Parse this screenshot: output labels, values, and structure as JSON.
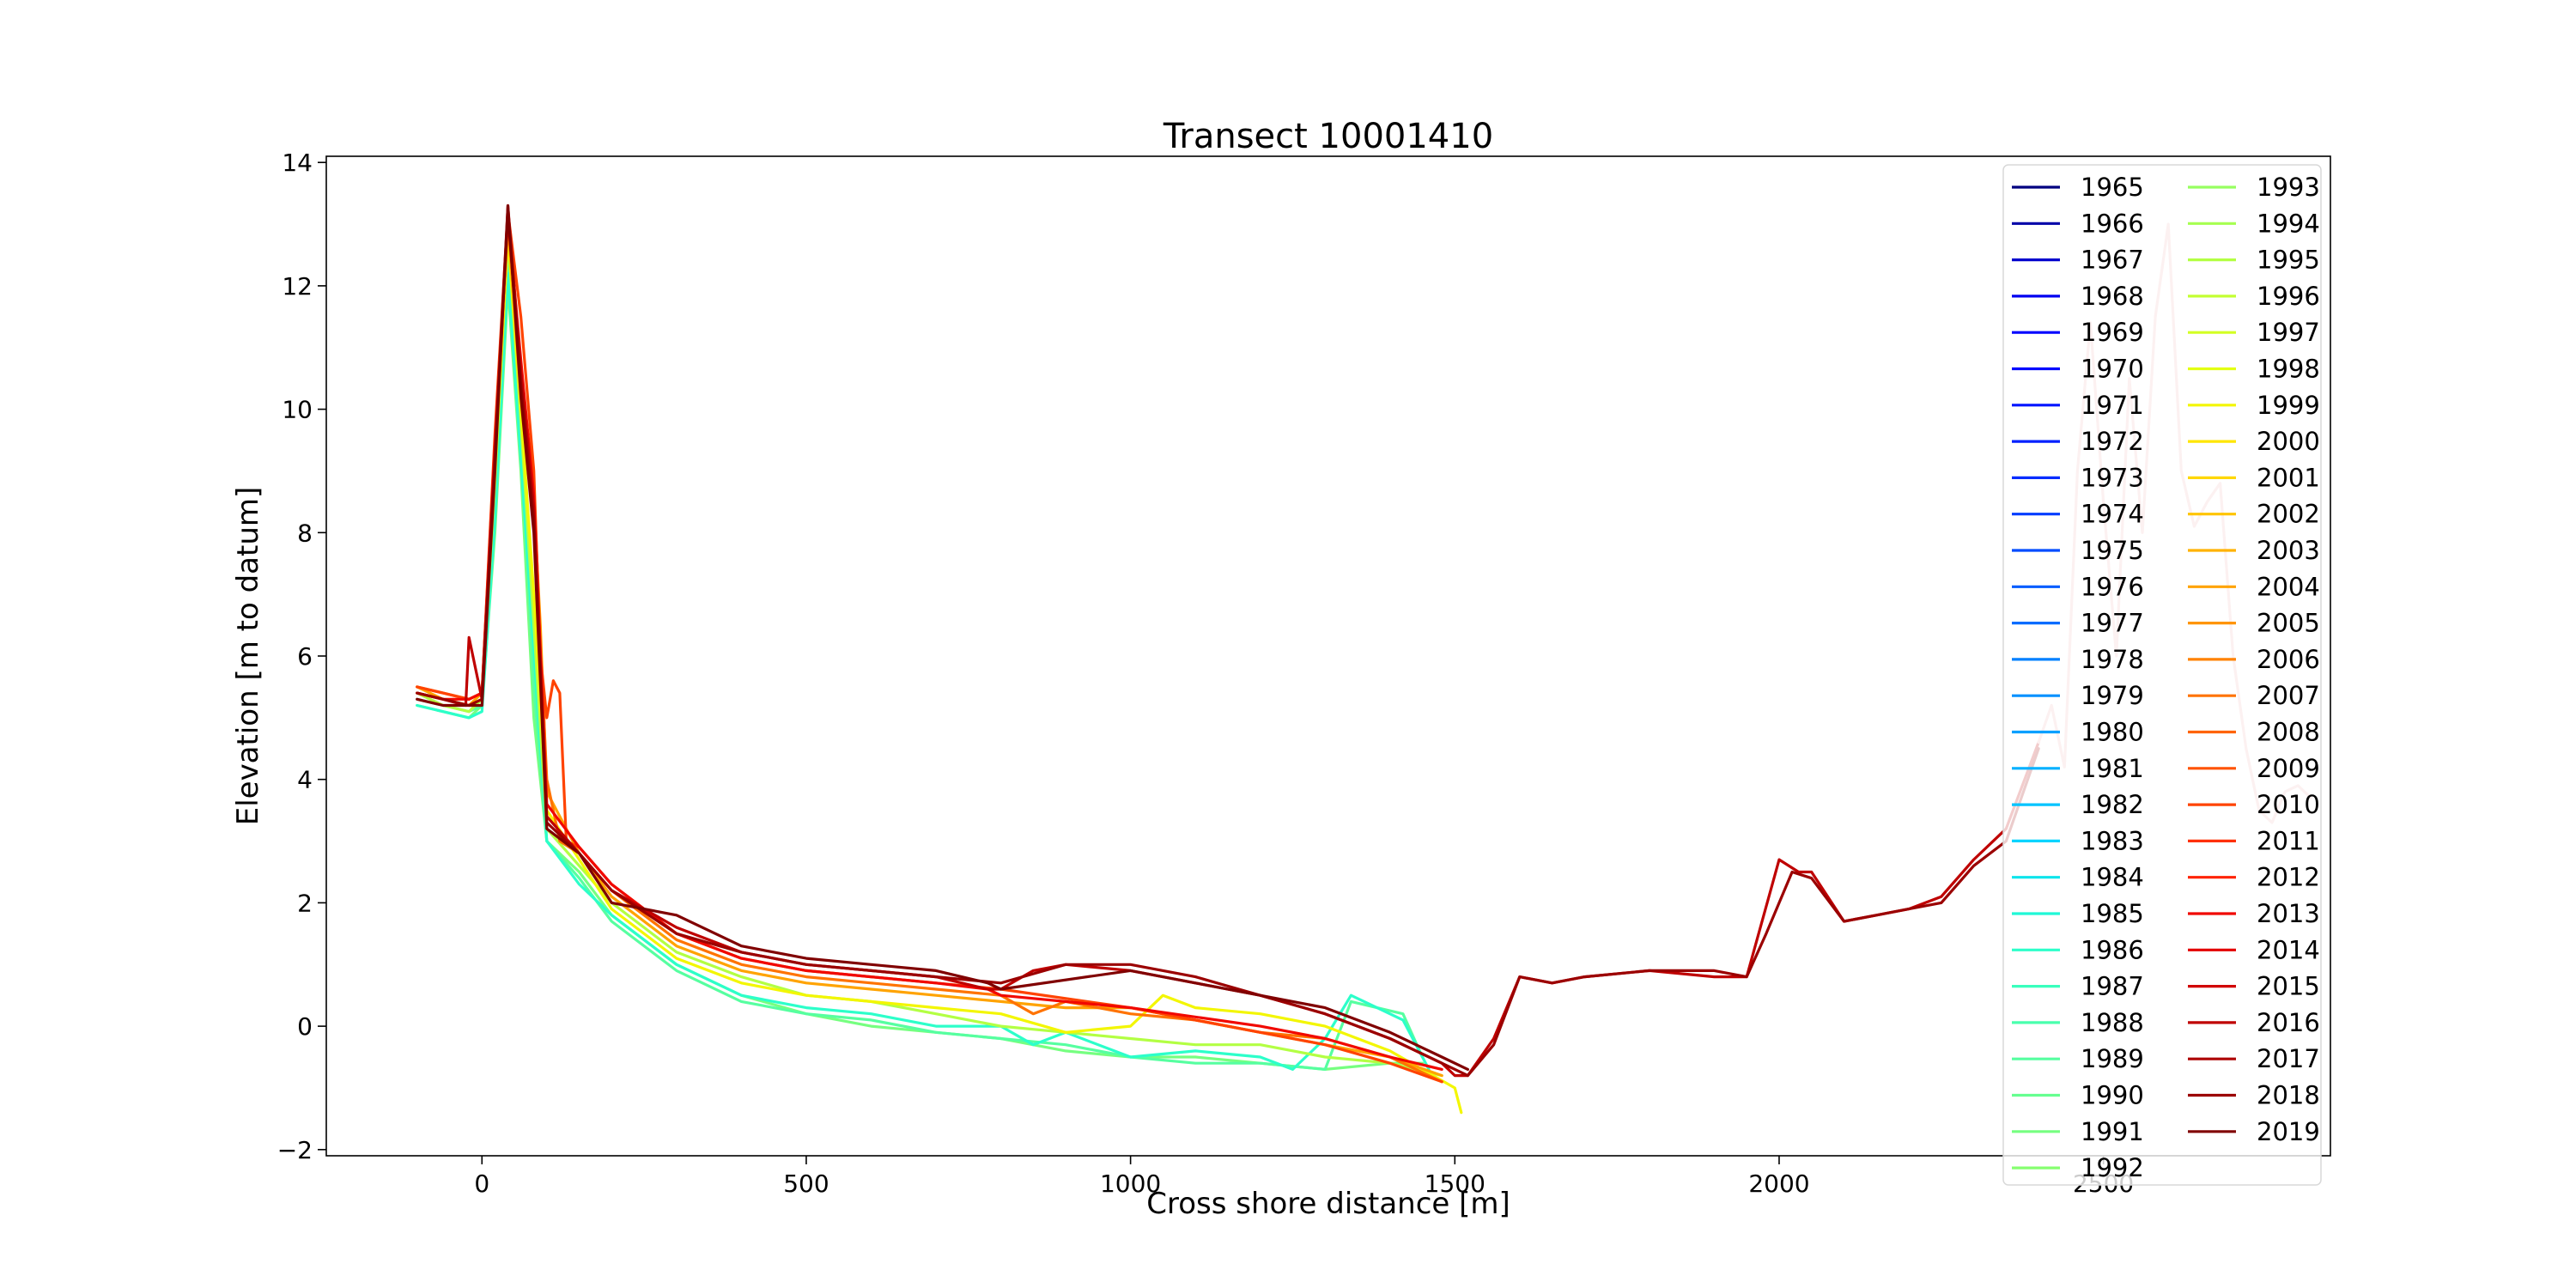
{
  "chart_data": {
    "type": "line",
    "title": "Transect 10001410",
    "xlabel": "Cross shore distance [m]",
    "ylabel": "Elevation [m to datum]",
    "xlim": [
      -240,
      2850
    ],
    "ylim": [
      -2.1,
      14.1
    ],
    "xticks": [
      0,
      500,
      1000,
      1500,
      2000,
      2500
    ],
    "xtick_labels": [
      "0",
      "500",
      "1000",
      "1500",
      "2000",
      "2500"
    ],
    "yticks": [
      -2,
      0,
      2,
      4,
      6,
      8,
      10,
      12,
      14
    ],
    "ytick_labels": [
      "−2",
      "0",
      "2",
      "4",
      "6",
      "8",
      "10",
      "12",
      "14"
    ],
    "grid": false,
    "legend": {
      "placement": "top-right",
      "columns": 2
    },
    "years": [
      "1965",
      "1966",
      "1967",
      "1968",
      "1969",
      "1970",
      "1971",
      "1972",
      "1973",
      "1974",
      "1975",
      "1976",
      "1977",
      "1978",
      "1979",
      "1980",
      "1981",
      "1982",
      "1983",
      "1984",
      "1985",
      "1986",
      "1987",
      "1988",
      "1989",
      "1990",
      "1991",
      "1992",
      "1993",
      "1994",
      "1995",
      "1996",
      "1997",
      "1998",
      "1999",
      "2000",
      "2001",
      "2002",
      "2003",
      "2004",
      "2005",
      "2006",
      "2007",
      "2008",
      "2009",
      "2010",
      "2011",
      "2012",
      "2013",
      "2014",
      "2015",
      "2016",
      "2017",
      "2018",
      "2019"
    ],
    "colors": [
      "#000080",
      "#0000a8",
      "#0000cd",
      "#0000f1",
      "#0000ff",
      "#0008ff",
      "#0014ff",
      "#0020ff",
      "#002cff",
      "#003cff",
      "#004cff",
      "#005cff",
      "#006cff",
      "#0080ff",
      "#0090ff",
      "#00a0ff",
      "#00b0ff",
      "#00c4ff",
      "#00d4ff",
      "#0ce4eb",
      "#1ff8d7",
      "#2cffca",
      "#39ffbd",
      "#49ffad",
      "#56ffa0",
      "#66ff90",
      "#76ff80",
      "#86ff70",
      "#96ff60",
      "#a6ff50",
      "#b3ff43",
      "#c3ff33",
      "#d3ff23",
      "#e3ff13",
      "#f3f602",
      "#ffe600",
      "#ffd700",
      "#ffc400",
      "#ffb200",
      "#ffa300",
      "#ff9400",
      "#ff8200",
      "#ff7300",
      "#ff6400",
      "#ff5200",
      "#ff4300",
      "#ff3000",
      "#ff2200",
      "#f10800",
      "#e30000",
      "#d10000",
      "#bf0000",
      "#ad0000",
      "#9b0000",
      "#800000"
    ],
    "series": [
      {
        "name": "1991",
        "color": "#76ff80",
        "x": [
          -100,
          -60,
          -20,
          0,
          20,
          40,
          60,
          80,
          100,
          150,
          200,
          300,
          400,
          500,
          600,
          700,
          800,
          900,
          1000,
          1100,
          1200,
          1300,
          1400,
          1450
        ],
        "y": [
          5.2,
          5.1,
          5.0,
          5.2,
          8.0,
          12.0,
          9.0,
          5.0,
          3.0,
          2.5,
          1.8,
          1.0,
          0.5,
          0.2,
          0.0,
          -0.1,
          -0.2,
          -0.4,
          -0.5,
          -0.5,
          -0.6,
          -0.7,
          -0.6,
          -0.6
        ]
      },
      {
        "name": "1989",
        "color": "#56ffa0",
        "x": [
          -100,
          -60,
          -20,
          0,
          20,
          40,
          60,
          80,
          100,
          150,
          200,
          300,
          400,
          500,
          600,
          700,
          800,
          900,
          1000,
          1100,
          1200,
          1300,
          1340,
          1380,
          1420,
          1450
        ],
        "y": [
          5.3,
          5.2,
          5.1,
          5.2,
          8.5,
          12.5,
          9.5,
          5.5,
          3.0,
          2.4,
          1.7,
          0.9,
          0.4,
          0.2,
          0.1,
          -0.1,
          -0.2,
          -0.3,
          -0.5,
          -0.6,
          -0.6,
          -0.7,
          0.4,
          0.3,
          0.2,
          -0.5
        ]
      },
      {
        "name": "1986",
        "color": "#2cffca",
        "x": [
          -100,
          -60,
          -20,
          0,
          20,
          40,
          60,
          100,
          150,
          200,
          300,
          400,
          500,
          600,
          700,
          800,
          850,
          900,
          1000,
          1100,
          1200,
          1250,
          1300,
          1340,
          1380,
          1420,
          1460
        ],
        "y": [
          5.2,
          5.1,
          5.0,
          5.1,
          8.2,
          12.2,
          9.2,
          3.0,
          2.3,
          1.8,
          1.0,
          0.5,
          0.3,
          0.2,
          0.0,
          0.0,
          -0.3,
          -0.1,
          -0.5,
          -0.4,
          -0.5,
          -0.7,
          -0.2,
          0.5,
          0.3,
          0.1,
          -0.7
        ]
      },
      {
        "name": "1995",
        "color": "#b3ff43",
        "x": [
          -100,
          -60,
          -20,
          0,
          20,
          40,
          60,
          100,
          150,
          200,
          300,
          400,
          500,
          600,
          700,
          800,
          900,
          1000,
          1100,
          1200,
          1300,
          1400,
          1480
        ],
        "y": [
          5.4,
          5.2,
          5.1,
          5.3,
          8.8,
          12.8,
          9.8,
          3.2,
          2.6,
          2.0,
          1.2,
          0.8,
          0.5,
          0.4,
          0.2,
          0.0,
          -0.1,
          -0.2,
          -0.3,
          -0.3,
          -0.5,
          -0.6,
          -0.8
        ]
      },
      {
        "name": "1999",
        "color": "#f3f602",
        "x": [
          -100,
          -60,
          -20,
          0,
          20,
          40,
          60,
          80,
          100,
          150,
          200,
          300,
          400,
          500,
          600,
          700,
          800,
          900,
          1000,
          1050,
          1100,
          1200,
          1300,
          1400,
          1500,
          1510
        ],
        "y": [
          5.4,
          5.3,
          5.2,
          5.3,
          9.0,
          12.8,
          10.0,
          7.0,
          3.5,
          2.7,
          1.9,
          1.1,
          0.7,
          0.5,
          0.4,
          0.3,
          0.2,
          -0.1,
          0.0,
          0.5,
          0.3,
          0.2,
          0.0,
          -0.4,
          -1.0,
          -1.4
        ]
      },
      {
        "name": "2004",
        "color": "#ffa300",
        "x": [
          -100,
          -60,
          -20,
          0,
          20,
          40,
          60,
          80,
          90,
          100,
          150,
          200,
          300,
          400,
          500,
          600,
          700,
          800,
          900,
          1000,
          1100,
          1200,
          1300,
          1400,
          1480
        ],
        "y": [
          5.5,
          5.3,
          5.2,
          5.4,
          9.2,
          13.0,
          10.2,
          8.5,
          6.5,
          3.8,
          2.8,
          2.1,
          1.3,
          0.9,
          0.7,
          0.6,
          0.5,
          0.4,
          0.3,
          0.3,
          0.1,
          -0.1,
          -0.3,
          -0.5,
          -0.8
        ]
      },
      {
        "name": "2007",
        "color": "#ff7300",
        "x": [
          -100,
          -60,
          -20,
          0,
          20,
          40,
          60,
          80,
          90,
          100,
          120,
          150,
          200,
          300,
          400,
          500,
          600,
          700,
          800,
          850,
          900,
          1000,
          1100,
          1200,
          1300,
          1400,
          1480
        ],
        "y": [
          5.5,
          5.4,
          5.3,
          5.4,
          9.5,
          13.1,
          10.5,
          8.8,
          6.2,
          4.0,
          3.0,
          2.8,
          2.2,
          1.4,
          1.0,
          0.8,
          0.7,
          0.6,
          0.5,
          0.2,
          0.4,
          0.2,
          0.1,
          -0.1,
          -0.2,
          -0.5,
          -0.9
        ]
      },
      {
        "name": "2010",
        "color": "#ff4300",
        "x": [
          -100,
          -60,
          -20,
          0,
          20,
          40,
          60,
          80,
          90,
          100,
          110,
          120,
          130,
          150,
          200,
          300,
          400,
          500,
          600,
          700,
          800,
          1000,
          1200,
          1300,
          1400,
          1480
        ],
        "y": [
          5.5,
          5.4,
          5.3,
          5.4,
          9.6,
          13.2,
          11.5,
          9.0,
          6.0,
          5.0,
          5.6,
          5.4,
          3.0,
          2.9,
          2.3,
          1.5,
          1.1,
          0.9,
          0.8,
          0.7,
          0.6,
          0.3,
          -0.1,
          -0.3,
          -0.6,
          -0.9
        ]
      },
      {
        "name": "2013",
        "color": "#f10800",
        "x": [
          -100,
          -60,
          -20,
          0,
          20,
          40,
          60,
          80,
          100,
          150,
          200,
          300,
          400,
          500,
          600,
          700,
          780,
          800,
          1000,
          1200,
          1300,
          1400,
          1480
        ],
        "y": [
          5.4,
          5.3,
          5.3,
          5.4,
          9.4,
          13.1,
          10.8,
          8.6,
          3.6,
          2.9,
          2.3,
          1.5,
          1.1,
          0.9,
          0.8,
          0.7,
          0.6,
          0.5,
          0.3,
          0.0,
          -0.2,
          -0.5,
          -0.7
        ]
      },
      {
        "name": "2016",
        "color": "#bf0000",
        "x": [
          -100,
          -60,
          -25,
          -20,
          0,
          20,
          40,
          60,
          80,
          100,
          150,
          200,
          300,
          400,
          500,
          600,
          700,
          780,
          800,
          850,
          900,
          1000,
          1100,
          1200,
          1300,
          1400,
          1480,
          1500,
          1520,
          1540,
          1560,
          1600,
          1650,
          1700,
          1800,
          1900,
          1950,
          2000,
          2030,
          2050,
          2100,
          2150,
          2200,
          2250,
          2300,
          2350,
          2400
        ],
        "y": [
          5.4,
          5.3,
          5.2,
          6.3,
          5.3,
          9.3,
          13.3,
          10.6,
          8.4,
          3.4,
          2.8,
          2.2,
          1.6,
          1.2,
          1.0,
          0.9,
          0.8,
          0.6,
          0.6,
          0.9,
          1.0,
          0.9,
          0.7,
          0.5,
          0.2,
          -0.2,
          -0.6,
          -0.8,
          -0.8,
          -0.5,
          -0.2,
          0.8,
          0.7,
          0.8,
          0.9,
          0.8,
          0.8,
          2.7,
          2.5,
          2.5,
          1.7,
          1.8,
          1.9,
          2.1,
          2.7,
          3.2,
          4.6
        ]
      },
      {
        "name": "2018",
        "color": "#9b0000",
        "x": [
          -100,
          -60,
          -20,
          0,
          20,
          40,
          60,
          80,
          100,
          150,
          200,
          300,
          400,
          500,
          600,
          700,
          800,
          900,
          1000,
          1100,
          1200,
          1300,
          1400,
          1480,
          1520,
          1560,
          1600,
          1650,
          1700,
          1800,
          1900,
          1950,
          1980,
          2020,
          2050,
          2100,
          2150,
          2200,
          2250,
          2300,
          2350,
          2400
        ],
        "y": [
          5.4,
          5.3,
          5.2,
          5.3,
          9.2,
          13.2,
          10.4,
          8.2,
          3.3,
          2.8,
          2.2,
          1.5,
          1.2,
          1.0,
          0.9,
          0.8,
          0.7,
          1.0,
          1.0,
          0.8,
          0.5,
          0.2,
          -0.2,
          -0.6,
          -0.8,
          -0.3,
          0.8,
          0.7,
          0.8,
          0.9,
          0.9,
          0.8,
          1.5,
          2.5,
          2.4,
          1.7,
          1.8,
          1.9,
          2.0,
          2.6,
          3.0,
          4.5
        ]
      },
      {
        "name": "2019",
        "color": "#800000",
        "x": [
          -100,
          -60,
          -20,
          0,
          20,
          40,
          60,
          80,
          100,
          150,
          200,
          300,
          400,
          500,
          600,
          700,
          780,
          800,
          1000,
          1100,
          1200,
          1300,
          1400,
          1480,
          1520
        ],
        "y": [
          5.3,
          5.2,
          5.2,
          5.2,
          9.0,
          13.3,
          10.2,
          8.0,
          3.2,
          2.8,
          2.0,
          1.8,
          1.3,
          1.1,
          1.0,
          0.9,
          0.7,
          0.6,
          0.9,
          0.7,
          0.5,
          0.3,
          -0.1,
          -0.5,
          -0.7
        ]
      },
      {
        "name": "",
        "color": "#f0b8b8",
        "x": [
          2400,
          2420,
          2440,
          2460,
          2480,
          2500,
          2520,
          2540,
          2560,
          2580,
          2600,
          2620,
          2640,
          2660,
          2680,
          2700,
          2720,
          2740,
          2760,
          2780,
          2800,
          2820
        ],
        "y": [
          4.6,
          5.2,
          4.2,
          9.0,
          11.4,
          8.5,
          6.0,
          10.5,
          8.0,
          11.5,
          13.0,
          9.0,
          8.1,
          8.5,
          8.8,
          6.0,
          4.5,
          3.5,
          3.3,
          3.8,
          3.9,
          3.7
        ]
      }
    ]
  }
}
